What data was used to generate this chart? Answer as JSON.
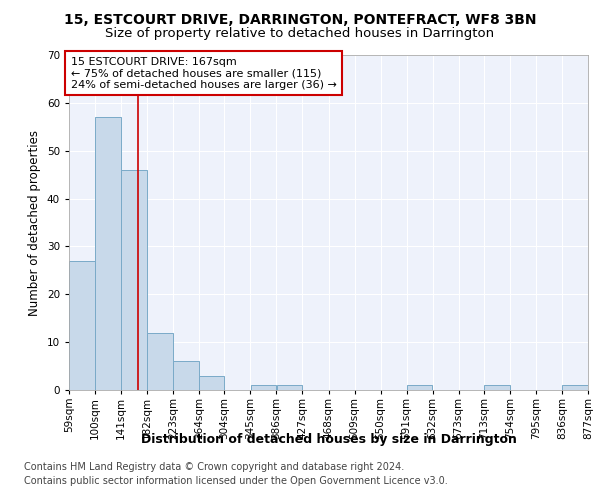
{
  "title1": "15, ESTCOURT DRIVE, DARRINGTON, PONTEFRACT, WF8 3BN",
  "title2": "Size of property relative to detached houses in Darrington",
  "xlabel": "Distribution of detached houses by size in Darrington",
  "ylabel": "Number of detached properties",
  "bins": [
    59,
    100,
    141,
    182,
    223,
    264,
    304,
    345,
    386,
    427,
    468,
    509,
    550,
    591,
    632,
    673,
    713,
    754,
    795,
    836,
    877
  ],
  "counts": [
    27,
    57,
    46,
    12,
    6,
    3,
    0,
    1,
    1,
    0,
    0,
    0,
    0,
    1,
    0,
    0,
    1,
    0,
    0,
    1
  ],
  "bar_color": "#c8d9ea",
  "bar_edge_color": "#7aaac8",
  "red_line_x": 167,
  "ylim": [
    0,
    70
  ],
  "yticks": [
    0,
    10,
    20,
    30,
    40,
    50,
    60,
    70
  ],
  "annotation_line1": "15 ESTCOURT DRIVE: 167sqm",
  "annotation_line2": "← 75% of detached houses are smaller (115)",
  "annotation_line3": "24% of semi-detached houses are larger (36) →",
  "footer1": "Contains HM Land Registry data © Crown copyright and database right 2024.",
  "footer2": "Contains public sector information licensed under the Open Government Licence v3.0.",
  "bg_color": "#eef2fb",
  "grid_color": "#ffffff",
  "annotation_box_color": "#ffffff",
  "annotation_box_edge": "#cc0000",
  "title1_fontsize": 10,
  "title2_fontsize": 9.5,
  "xlabel_fontsize": 9,
  "ylabel_fontsize": 8.5,
  "tick_fontsize": 7.5,
  "annotation_fontsize": 8,
  "footer_fontsize": 7
}
